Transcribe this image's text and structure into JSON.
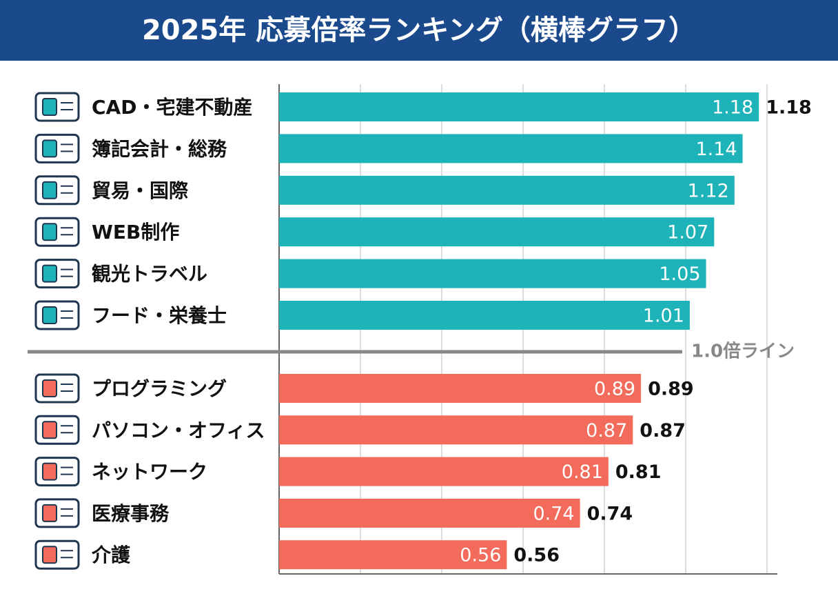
{
  "chart_data": {
    "type": "barh",
    "title": "2025年 応募倍率ランキング（横棒グラフ）",
    "categories": [
      "CAD・宅建不動産",
      "簿記会計・総務",
      "貿易・国際",
      "WEB制作",
      "観光トラベル",
      "フード・栄養士",
      "プログラミング",
      "パソコン・オフィス",
      "ネットワーク",
      "医療事務",
      "介護"
    ],
    "series": [
      {
        "color": "#1db3b8",
        "values": [
          1.18,
          1.14,
          1.12,
          1.07,
          1.05,
          1.01,
          null,
          null,
          null,
          null,
          null
        ],
        "outside_labels": [
          true,
          false,
          false,
          false,
          false,
          false,
          false,
          false,
          false,
          false,
          false
        ]
      },
      {
        "color": "#f26b5b",
        "values": [
          null,
          null,
          null,
          null,
          null,
          null,
          0.89,
          0.87,
          0.81,
          0.74,
          0.56
        ],
        "outside_labels": [
          false,
          false,
          false,
          false,
          false,
          false,
          true,
          true,
          true,
          true,
          true
        ]
      }
    ],
    "xlim": [
      0,
      1.2
    ],
    "xticks": [
      0,
      0.2,
      0.4,
      0.6,
      0.8,
      1.0,
      1.2
    ],
    "grid": true,
    "reference_line": {
      "value": 1.0,
      "label": "1.0倍ライン"
    }
  }
}
